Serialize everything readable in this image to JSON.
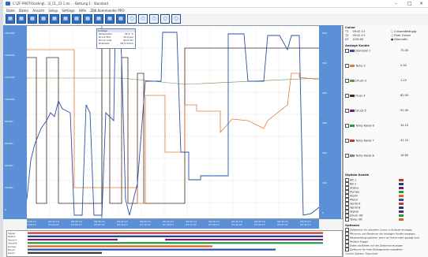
{
  "window": {
    "title": "C:\\ZF-PROTOcoding\\...\\2_CL_23.1.mi..  -  Bettung 1 - Standard",
    "minimize_glyph": "–",
    "maximize_glyph": "□",
    "close_glyph": "×"
  },
  "menu": [
    "Datei",
    "Daten",
    "Ansicht",
    "Setup",
    "Settings",
    "Hilfe",
    "ZBK Kommander PRO"
  ],
  "toolbar": {
    "icons": [
      "grid-icon",
      "save-icon",
      "chart-icon",
      "zoom-icon",
      "cursor-icon",
      "measure-icon",
      "marker-icon",
      "print-icon",
      "export-icon",
      "layout-icon",
      "settings-icon",
      "ring-icon",
      "ring-icon",
      "ring-icon",
      "ring-icon",
      "ring-icon"
    ]
  },
  "plot": {
    "left_ticks": [
      "160,000",
      "140,000",
      "120,000",
      "100,000",
      "80,000",
      "60,000",
      "40,000",
      "20,000",
      "0"
    ],
    "right_ticks": [
      "600",
      "500",
      "400",
      "300",
      "200",
      "100",
      "0"
    ],
    "x_ticks": [
      [
        "09:41:13",
        "01:00:17"
      ],
      [
        "09:41:13",
        "01:02:47"
      ],
      [
        "09:41:13",
        "01:05:17"
      ],
      [
        "09:41:13",
        "01:07:47"
      ],
      [
        "09:41:13",
        "01:10:17"
      ],
      [
        "09:41:13",
        "01:12:47"
      ],
      [
        "09:41:13",
        "01:15:17"
      ],
      [
        "09:41:13",
        "01:17:47"
      ],
      [
        "09:41:13",
        "01:20:17"
      ],
      [
        "09:41:13",
        "01:22:47"
      ],
      [
        "09:41:13",
        "01:25:17"
      ],
      [
        "09:41:13",
        "01:27:47"
      ],
      [
        "09:41:13",
        "01:30:17"
      ]
    ],
    "popup": {
      "header": "Anzeige",
      "rows": [
        [
          "Temperatur",
          "34.1 °C"
        ],
        [
          "Druck Einl.",
          "92.0 bar"
        ],
        [
          "Druck Ausl.",
          "62.0 bar"
        ],
        [
          "Drehzahl",
          "84.5 U/min"
        ]
      ]
    },
    "colors": {
      "blue": "#2e4fa8",
      "orange": "#e07b39",
      "green": "#5a9b3f",
      "dark": "#4a2a1a"
    }
  },
  "strips": {
    "labels": [
      "Signal",
      "Status",
      "Ventil A",
      "Ventil B",
      "Pumpe",
      "Druck",
      "Alarm"
    ],
    "colors": [
      "#c0392b",
      "#1f3b8c",
      "#7a1b7a",
      "#1aa03a",
      "#e06020",
      "#2e4fa8",
      "#333333"
    ]
  },
  "panel": {
    "cursor_title": "Cursor",
    "cursor_labels": [
      "T1",
      "T2",
      "ΔT"
    ],
    "cursor_values": [
      "09:41:13",
      "09:41:13",
      "0:00:00"
    ],
    "radio_labels": [
      "Cursorabhängig",
      "Fixer Cursor",
      "Alternativ"
    ],
    "signal_title": "Analoge Kanäle",
    "signal_cols": [
      "Nr",
      "Wert",
      "Ist"
    ],
    "signals": [
      {
        "name": "Drehzahl 1",
        "val": "75.00",
        "color": "#2e4fa8"
      },
      {
        "name": "Temp 2",
        "val": "2.30",
        "color": "#e07b39"
      },
      {
        "name": "Druck 3",
        "val": "1.25",
        "color": "#5a9b3f"
      },
      {
        "name": "Fluss 4",
        "val": "62.00",
        "color": "#4a2a1a"
      },
      {
        "name": "Druck 5",
        "val": "92.00",
        "color": "#7a1b7a"
      },
      {
        "name": "Temp Kanal 6",
        "val": "34.10",
        "color": "#1aa03a"
      },
      {
        "name": "Temp Kanal 7",
        "val": "41.20",
        "color": "#c0392b"
      },
      {
        "name": "Temp Kanal 8",
        "val": "18.80",
        "color": "#888888"
      }
    ],
    "digital_title": "Digitale Kanäle",
    "digital": [
      "Bit 1",
      "Bit 2",
      "Status",
      "Pumpe",
      "Alarm",
      "Motor",
      "Ventil A",
      "Ventil B",
      "Signal",
      "Druck OK",
      "Temp OK"
    ],
    "digital_colors": [
      "#c0392b",
      "#1f3b8c",
      "#7a1b7a",
      "#1aa03a",
      "#e06020",
      "#2e4fa8",
      "#c0392b",
      "#1f3b8c",
      "#7a1b7a",
      "#1aa03a",
      "#e06020"
    ],
    "options_title": "Optionen",
    "options": [
      "Zeitbereich für aktuellen Cursor in Echtzeit anzeigen",
      "Minimum und Maximum der analogen Kanäle anzeigen",
      "Messkanäle gruppieren, wenn ein Kanal mehr gezeigt wird",
      "Multiple Trigger",
      "Daten als Balken auf der Zeitachse anzeigen",
      "Zeitkursor für freie Zeitsegmente auswählen"
    ],
    "status": "Online-Daten: Standard"
  }
}
